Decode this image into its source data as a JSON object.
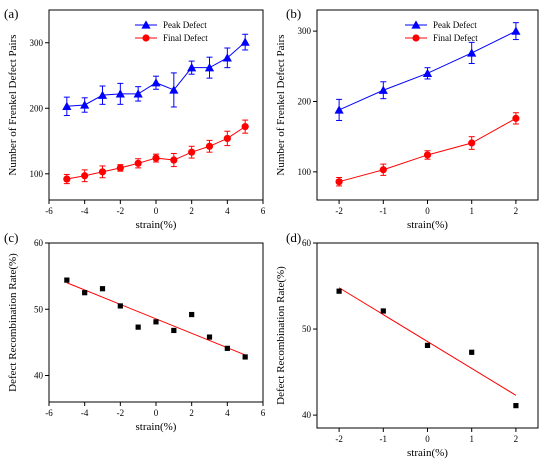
{
  "chart_data": [
    {
      "panel_label": "(a)",
      "type": "line",
      "xlabel": "strain(%)",
      "ylabel": "Number of Frenkel Defect Pairs",
      "xlim": [
        -6,
        6
      ],
      "ylim": [
        60,
        350
      ],
      "xticks": [
        -6,
        -4,
        -2,
        0,
        2,
        4,
        6
      ],
      "yticks": [
        100,
        200,
        300
      ],
      "legend": "top-left",
      "x": [
        -5,
        -4,
        -3,
        -2,
        -1,
        0,
        1,
        2,
        3,
        4,
        5
      ],
      "series": [
        {
          "name": "Peak Defect",
          "color": "#0000ff",
          "marker": "triangle",
          "values": [
            203,
            205,
            220,
            222,
            222,
            239,
            228,
            262,
            262,
            277,
            301
          ],
          "errors": [
            14,
            11,
            14,
            16,
            11,
            10,
            26,
            10,
            16,
            15,
            12
          ]
        },
        {
          "name": "Final Defect",
          "color": "#ff0000",
          "marker": "circle",
          "values": [
            92,
            97,
            103,
            109,
            116,
            124,
            121,
            133,
            142,
            154,
            172
          ],
          "errors": [
            7,
            9,
            9,
            5,
            7,
            6,
            10,
            9,
            9,
            11,
            10
          ]
        }
      ]
    },
    {
      "panel_label": "(b)",
      "type": "line",
      "xlabel": "strain(%)",
      "ylabel": "Number of Frenkel Defect Pairs",
      "xlim": [
        -2.5,
        2.5
      ],
      "ylim": [
        60,
        330
      ],
      "xticks": [
        -2,
        -1,
        0,
        1,
        2
      ],
      "yticks": [
        100,
        200,
        300
      ],
      "legend": "top-left",
      "x": [
        -2,
        -1,
        0,
        1,
        2
      ],
      "series": [
        {
          "name": "Peak Defect",
          "color": "#0000ff",
          "marker": "triangle",
          "values": [
            188,
            216,
            240,
            269,
            300
          ],
          "errors": [
            15,
            12,
            8,
            15,
            12
          ]
        },
        {
          "name": "Final Defect",
          "color": "#ff0000",
          "marker": "circle",
          "values": [
            86,
            103,
            124,
            141,
            176
          ],
          "errors": [
            6,
            8,
            6,
            9,
            8
          ]
        }
      ]
    },
    {
      "panel_label": "(c)",
      "type": "scatter",
      "xlabel": "strain(%)",
      "ylabel": "Defect Recombination Rate(%)",
      "xlim": [
        -6,
        6
      ],
      "ylim": [
        36,
        60
      ],
      "xticks": [
        -6,
        -4,
        -2,
        0,
        2,
        4,
        6
      ],
      "yticks": [
        40,
        50,
        60
      ],
      "x": [
        -5,
        -4,
        -3,
        -2,
        -1,
        0,
        1,
        2,
        3,
        4,
        5
      ],
      "series": [
        {
          "color": "#000000",
          "marker": "square",
          "values": [
            54.4,
            52.5,
            53.1,
            50.5,
            47.3,
            48.1,
            46.8,
            49.2,
            45.8,
            44.1,
            42.8
          ]
        }
      ],
      "fit": {
        "color": "#ff0000",
        "x": [
          -5,
          5
        ],
        "y": [
          54.0,
          43.1
        ]
      }
    },
    {
      "panel_label": "(d)",
      "type": "scatter",
      "xlabel": "strain(%)",
      "ylabel": "Defect Recombination Rate(%)",
      "xlim": [
        -2.5,
        2.5
      ],
      "ylim": [
        38.5,
        60
      ],
      "xticks": [
        -2,
        -1,
        0,
        1,
        2
      ],
      "yticks": [
        40,
        50,
        60
      ],
      "x": [
        -2,
        -1,
        0,
        1,
        2
      ],
      "series": [
        {
          "color": "#000000",
          "marker": "square",
          "values": [
            54.4,
            52.1,
            48.1,
            47.3,
            41.1
          ]
        }
      ],
      "fit": {
        "color": "#ff0000",
        "x": [
          -2,
          2
        ],
        "y": [
          54.8,
          42.3
        ]
      }
    }
  ]
}
